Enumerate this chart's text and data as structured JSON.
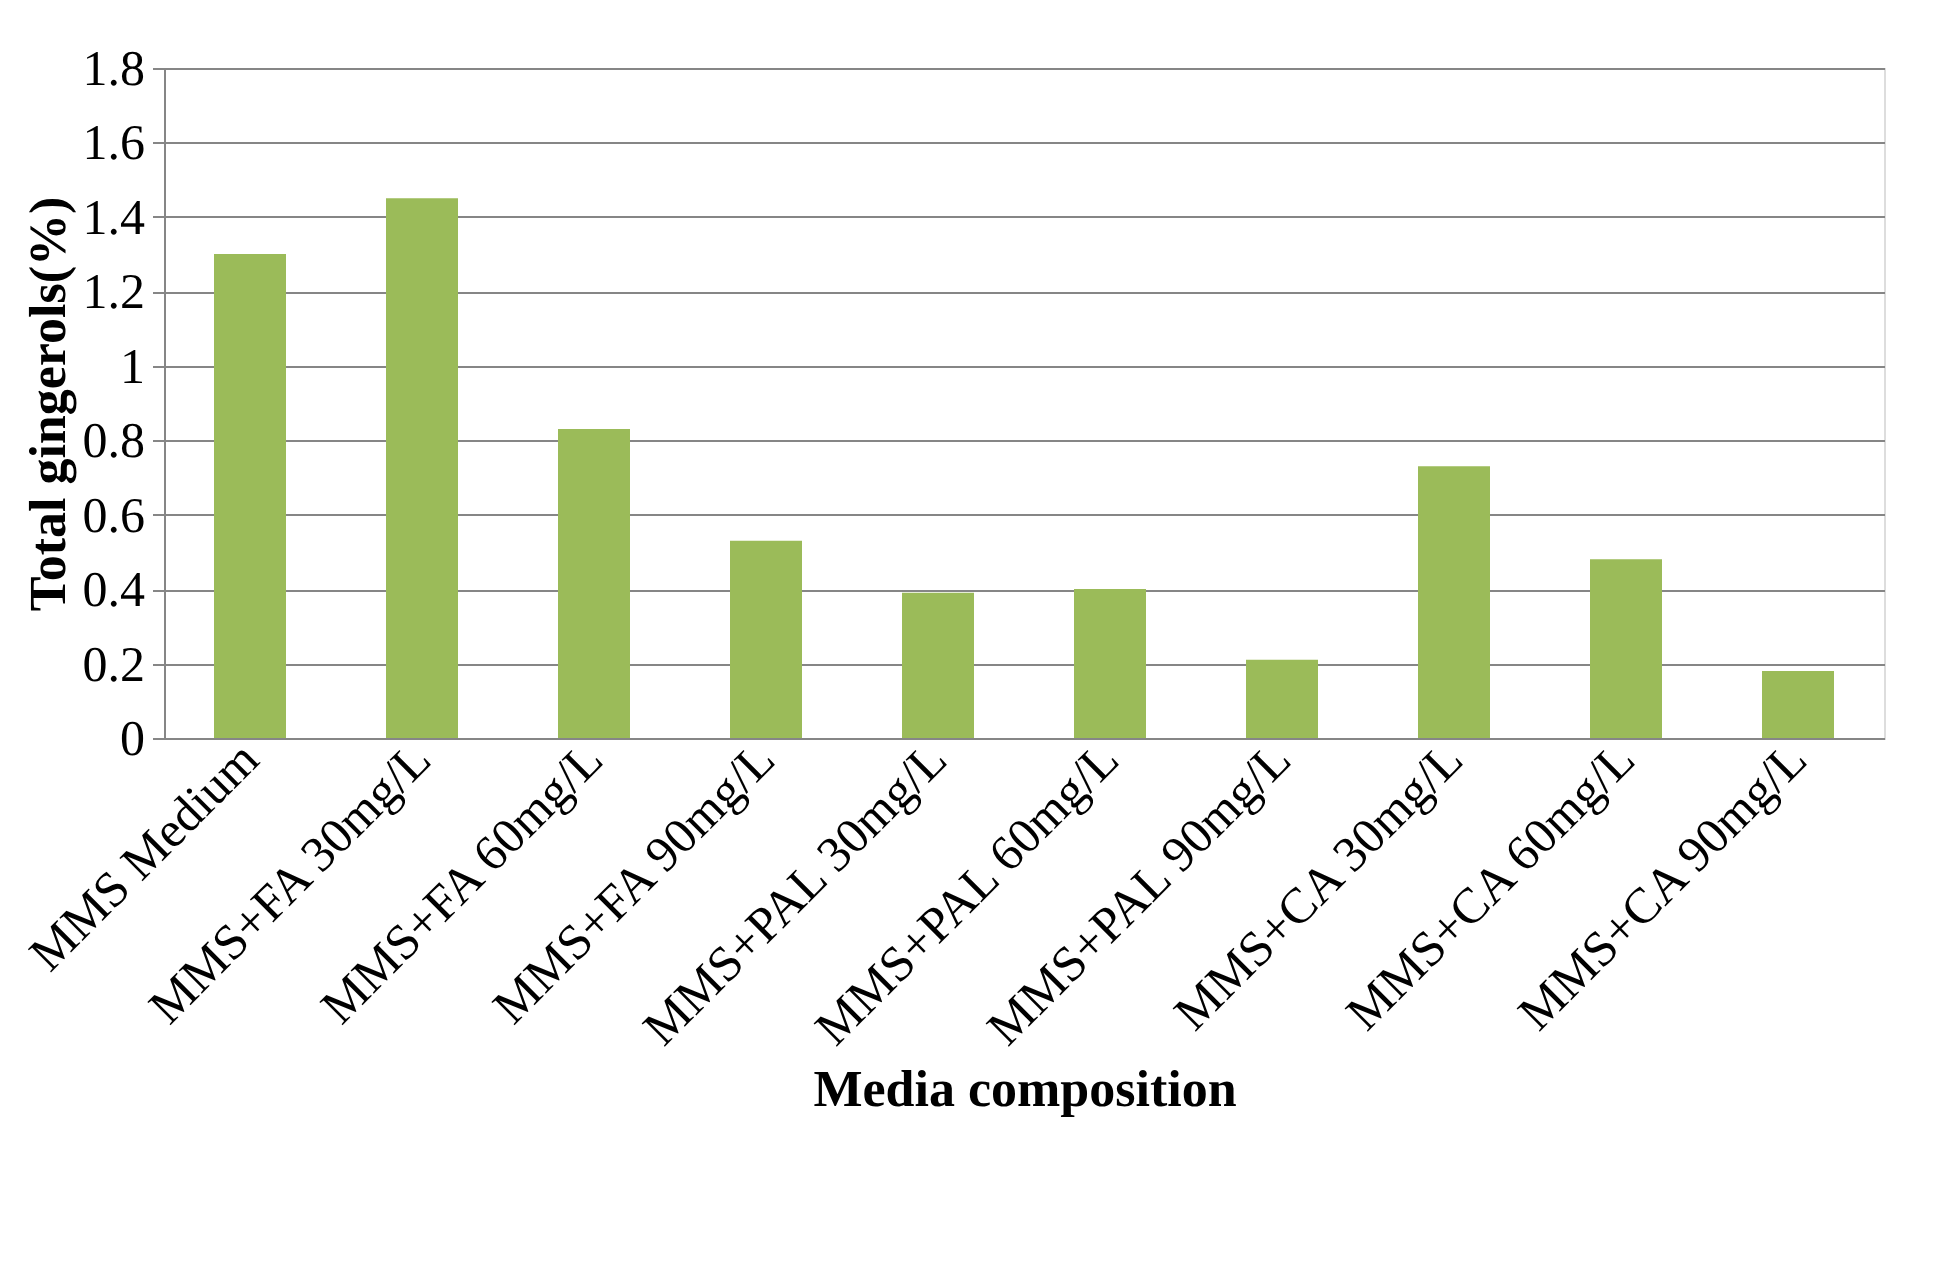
{
  "chart_data": {
    "type": "bar",
    "xlabel": "Media composition",
    "ylabel": "Total gingerols(%)",
    "categories": [
      "MMS Medium",
      "MMS+FA 30mg/L",
      "MMS+FA 60mg/L",
      "MMS+FA 90mg/L",
      "MMS+PAL 30mg/L",
      "MMS+PAL 60mg/L",
      "MMS+PAL 90mg/L",
      "MMS+CA 30mg/L",
      "MMS+CA 60mg/L",
      "MMS+CA 90mg/L"
    ],
    "values": [
      1.3,
      1.45,
      0.83,
      0.53,
      0.39,
      0.4,
      0.21,
      0.73,
      0.48,
      0.18
    ],
    "color": "#9bbb59",
    "ylim": [
      0,
      1.8
    ],
    "yticks": [
      0,
      0.2,
      0.4,
      0.6,
      0.8,
      1,
      1.2,
      1.4,
      1.6,
      1.8
    ],
    "grid": "y"
  }
}
